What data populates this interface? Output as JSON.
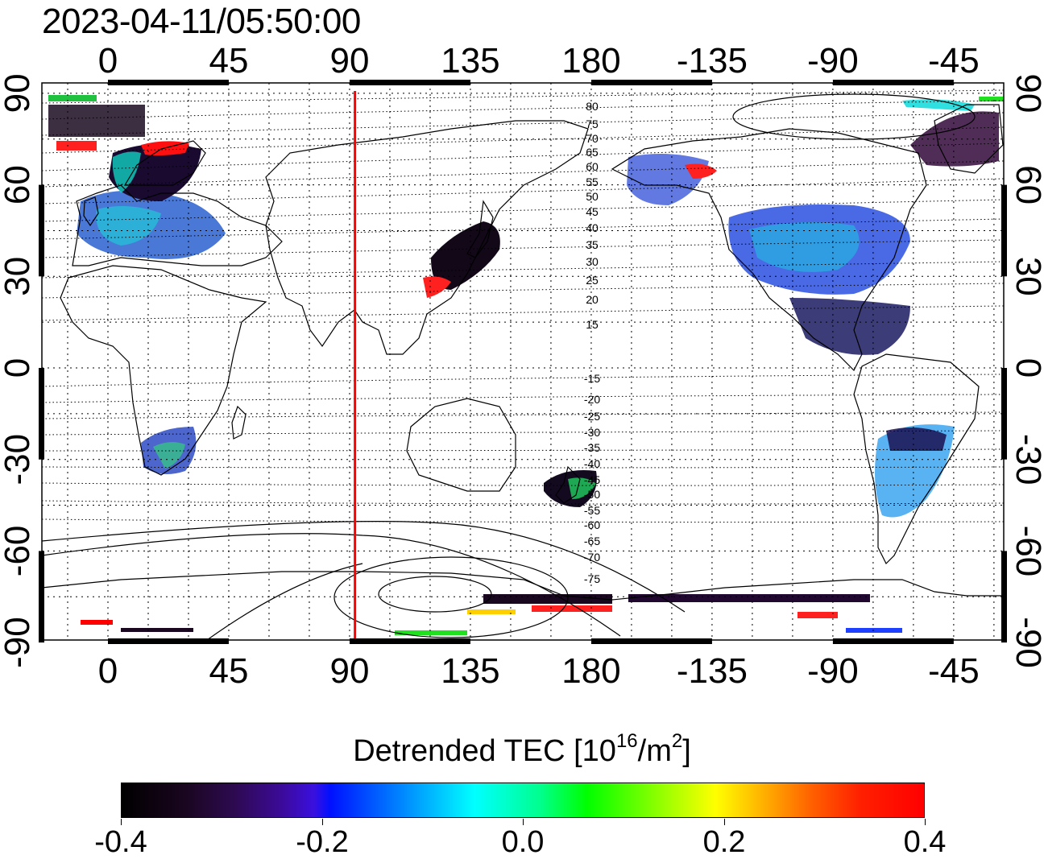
{
  "title": "2023-04-11/05:50:00",
  "map": {
    "top_longitude_labels": [
      "0",
      "45",
      "90",
      "135",
      "180",
      "-135",
      "-90",
      "-45"
    ],
    "bottom_longitude_labels": [
      "0",
      "45",
      "90",
      "135",
      "180",
      "-135",
      "-90",
      "-45"
    ],
    "left_latitude_labels": [
      "90",
      "60",
      "30",
      "0",
      "-30",
      "-60",
      "-90"
    ],
    "right_latitude_labels": [
      "90",
      "60",
      "30",
      "0",
      "-30",
      "-60",
      "-90"
    ],
    "contour_labels_north": [
      "80",
      "75",
      "70",
      "65",
      "60",
      "55",
      "50",
      "45",
      "40",
      "35",
      "30",
      "25",
      "20",
      "15"
    ],
    "contour_labels_south": [
      "-15",
      "-20",
      "-25",
      "-30",
      "-35",
      "-40",
      "-45",
      "-50",
      "-55",
      "-60",
      "-65",
      "-70",
      "-75"
    ],
    "marker_line_longitude": 92,
    "marker_line_color": "#ff0000"
  },
  "colorbar": {
    "title_main": "Detrended TEC  [10",
    "title_exp": "16",
    "title_unit": "/m",
    "title_unit_exp": "2",
    "title_close": "]",
    "tick_labels": [
      "-0.4",
      "-0.2",
      "0.0",
      "0.2",
      "0.4"
    ],
    "range": [
      -0.4,
      0.4
    ]
  }
}
